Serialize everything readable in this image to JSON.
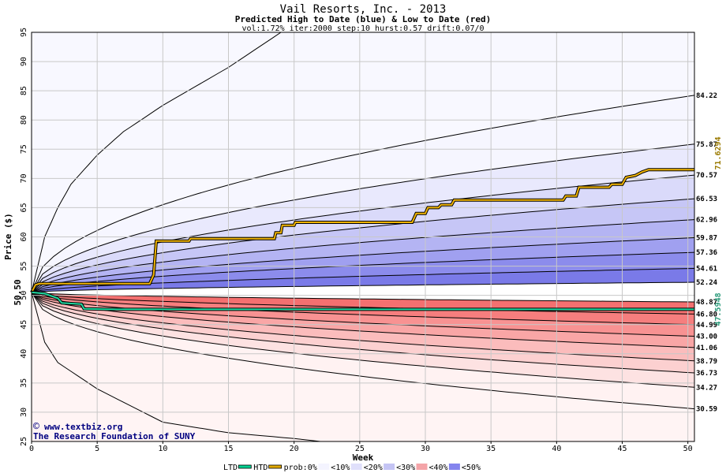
{
  "chart_data": {
    "type": "area",
    "title": "Vail Resorts, Inc. - 2013",
    "subtitle": "Predicted High to Date (blue) &  Low to Date (red)",
    "params": "vol:1.72% iter:2000 step:10 hurst:0.57 drift:0.07/0",
    "xlabel": "Week",
    "ylabel": "Price ($)",
    "xlim": [
      0,
      50.5
    ],
    "ylim": [
      25,
      95
    ],
    "x_ticks": [
      0,
      5,
      10,
      15,
      20,
      25,
      30,
      35,
      40,
      45,
      50
    ],
    "y_ticks": [
      25,
      30,
      35,
      40,
      45,
      50,
      55,
      60,
      65,
      70,
      75,
      80,
      85,
      90,
      95
    ],
    "grid": true,
    "start_price": 50.5,
    "start_label": "50.50",
    "high_quantiles": [
      {
        "label": "52.24",
        "end": 52.24
      },
      {
        "label": "54.61",
        "end": 54.61
      },
      {
        "label": "57.36",
        "end": 57.36
      },
      {
        "label": "59.87",
        "end": 59.87
      },
      {
        "label": "62.96",
        "end": 62.96
      },
      {
        "label": "66.53",
        "end": 66.53
      },
      {
        "label": "70.57",
        "end": 70.57
      },
      {
        "label": "75.87",
        "end": 75.87
      },
      {
        "label": "84.22",
        "end": 84.22
      }
    ],
    "low_quantiles": [
      {
        "label": "48.87",
        "end": 48.87
      },
      {
        "label": "46.80",
        "end": 46.8
      },
      {
        "label": "44.99",
        "end": 44.99
      },
      {
        "label": "43.00",
        "end": 43.0
      },
      {
        "label": "41.06",
        "end": 41.06
      },
      {
        "label": "38.79",
        "end": 38.79
      },
      {
        "label": "36.73",
        "end": 36.73
      },
      {
        "label": "34.27",
        "end": 34.27
      },
      {
        "label": "30.59",
        "end": 30.59
      }
    ],
    "high_envelope_points": [
      [
        0,
        50.5
      ],
      [
        1,
        60
      ],
      [
        2,
        65
      ],
      [
        3,
        69
      ],
      [
        5,
        74
      ],
      [
        7,
        78
      ],
      [
        10,
        82.5
      ],
      [
        15,
        89
      ],
      [
        19,
        95
      ]
    ],
    "low_envelope_points": [
      [
        0,
        50.5
      ],
      [
        1,
        42
      ],
      [
        2,
        38.5
      ],
      [
        5,
        34
      ],
      [
        10,
        28.3
      ],
      [
        15,
        26.5
      ],
      [
        20,
        25.5
      ],
      [
        22,
        25
      ]
    ],
    "htd_series": {
      "name": "HTD",
      "label": "71.6294",
      "points": [
        [
          0,
          50.5
        ],
        [
          0.3,
          51.8
        ],
        [
          0.6,
          52
        ],
        [
          9,
          52
        ],
        [
          9.3,
          53.5
        ],
        [
          9.5,
          59.3
        ],
        [
          12,
          59.3
        ],
        [
          12.1,
          59.7
        ],
        [
          18.5,
          59.7
        ],
        [
          18.6,
          60.7
        ],
        [
          19,
          60.7
        ],
        [
          19.1,
          62
        ],
        [
          20,
          62
        ],
        [
          20.1,
          62.5
        ],
        [
          29,
          62.5
        ],
        [
          29.3,
          64
        ],
        [
          30,
          64
        ],
        [
          30.2,
          65
        ],
        [
          31,
          65
        ],
        [
          31.2,
          65.5
        ],
        [
          32,
          65.5
        ],
        [
          32.2,
          66.3
        ],
        [
          40.5,
          66.3
        ],
        [
          40.7,
          67
        ],
        [
          41.5,
          67
        ],
        [
          41.7,
          68.5
        ],
        [
          44,
          68.5
        ],
        [
          44.2,
          69
        ],
        [
          45,
          69
        ],
        [
          45.3,
          70.2
        ],
        [
          46,
          70.5
        ],
        [
          46.5,
          71.1
        ],
        [
          47,
          71.5
        ],
        [
          50.5,
          71.5
        ]
      ]
    },
    "ltd_series": {
      "name": "LTD",
      "label": "47.5948",
      "points": [
        [
          0,
          50.5
        ],
        [
          1,
          50.3
        ],
        [
          2,
          49.5
        ],
        [
          2.3,
          48.7
        ],
        [
          3.8,
          48.5
        ],
        [
          4,
          47.7
        ],
        [
          6,
          47.6
        ],
        [
          50.5,
          47.6
        ]
      ]
    },
    "legend": {
      "placement": "bottom",
      "entries": [
        {
          "label": "LTD",
          "color": "#00d090"
        },
        {
          "label": "HTD",
          "color": "#e0a800"
        },
        {
          "label": "prob:0%",
          "color": ""
        },
        {
          "label": "<10%",
          "color": "#f4f4ff"
        },
        {
          "label": "<20%",
          "color": "#e0e0fb"
        },
        {
          "label": "<30%",
          "color": "#c4c4f4"
        },
        {
          "label": "<40%",
          "color": "#f4a4a8"
        },
        {
          "label": "<50%",
          "color": "#8484ee"
        }
      ]
    },
    "colors": {
      "blue_shades": [
        "#f6f6ff",
        "#e9e9fd",
        "#dadafa",
        "#c6c6f6",
        "#b4b4f3",
        "#a0a0f0",
        "#8c8cec",
        "#7a7ae8"
      ],
      "red_shades": [
        "#fff2f2",
        "#fde2e2",
        "#fcd0d0",
        "#fbbcbc",
        "#f9a6a6",
        "#f89292",
        "#f67e7e",
        "#f47070"
      ],
      "htd_line": "#f0b400",
      "ltd_line": "#20d8a0",
      "htd_label_color": "#9a7a00",
      "ltd_label_color": "#2a9a7a",
      "title_color": "#000000",
      "watermark_color": "#000080"
    }
  },
  "watermark": {
    "line1": "www.textbiz.org",
    "line2": "The Research Foundation of SUNY"
  }
}
